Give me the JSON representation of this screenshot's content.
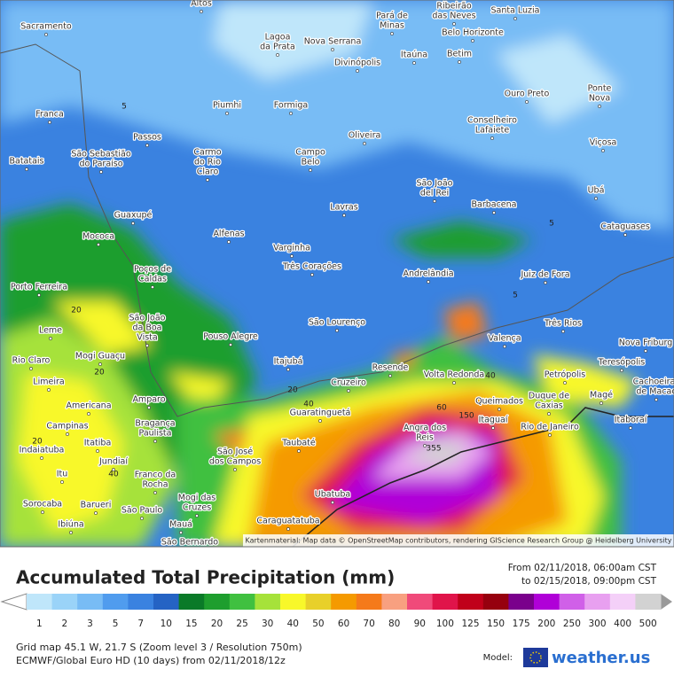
{
  "map": {
    "attribution": "Kartenmaterial: Map data © OpenStreetMap contributors, rendering GIScience Research Group @ Heidelberg University",
    "cities": [
      {
        "lines": [
          "Altos"
        ]
      },
      {
        "lines": [
          "Sacramento"
        ]
      },
      {
        "lines": [
          "Pará de",
          "Minas"
        ]
      },
      {
        "lines": [
          "Ribeirão",
          "das Neves"
        ]
      },
      {
        "lines": [
          "Santa Luzia"
        ]
      },
      {
        "lines": [
          "Lagoa",
          "da Prata"
        ]
      },
      {
        "lines": [
          "Nova Serrana"
        ]
      },
      {
        "lines": [
          "Belo Horizonte"
        ]
      },
      {
        "lines": [
          "Itaúna"
        ]
      },
      {
        "lines": [
          "Betim"
        ]
      },
      {
        "lines": [
          "Divinópolis"
        ]
      },
      {
        "lines": [
          "Ouro Preto"
        ]
      },
      {
        "lines": [
          "Ponte",
          "Nova"
        ]
      },
      {
        "lines": [
          "Franca"
        ]
      },
      {
        "lines": [
          "Piumhi"
        ]
      },
      {
        "lines": [
          "Formiga"
        ]
      },
      {
        "lines": [
          "Conselheiro",
          "Lafaiete"
        ]
      },
      {
        "lines": [
          "Passos"
        ]
      },
      {
        "lines": [
          "Oliveira"
        ]
      },
      {
        "lines": [
          "Viçosa"
        ]
      },
      {
        "lines": [
          "Batatais"
        ]
      },
      {
        "lines": [
          "São Sebastião",
          "do Paraíso"
        ]
      },
      {
        "lines": [
          "Carmo",
          "do Rio",
          "Claro"
        ]
      },
      {
        "lines": [
          "Campo",
          "Belo"
        ]
      },
      {
        "lines": [
          "São João",
          "del Rei"
        ]
      },
      {
        "lines": [
          "Ubá"
        ]
      },
      {
        "lines": [
          "Lavras"
        ]
      },
      {
        "lines": [
          "Barbacena"
        ]
      },
      {
        "lines": [
          "Guaxupé"
        ]
      },
      {
        "lines": [
          "Cataguases"
        ]
      },
      {
        "lines": [
          "Mococa"
        ]
      },
      {
        "lines": [
          "Alfenas"
        ]
      },
      {
        "lines": [
          "Varginha"
        ]
      },
      {
        "lines": [
          "Três Corações"
        ]
      },
      {
        "lines": [
          "Poços de",
          "Caldas"
        ]
      },
      {
        "lines": [
          "Andrelândia"
        ]
      },
      {
        "lines": [
          "Juiz de Fora"
        ]
      },
      {
        "lines": [
          "Porto Ferreira"
        ]
      },
      {
        "lines": [
          "São João",
          "da Boa",
          "Vista"
        ]
      },
      {
        "lines": [
          "São Lourenço"
        ]
      },
      {
        "lines": [
          "Três Rios"
        ]
      },
      {
        "lines": [
          "Leme"
        ]
      },
      {
        "lines": [
          "Pouso Alegre"
        ]
      },
      {
        "lines": [
          "Valença"
        ]
      },
      {
        "lines": [
          "Nova Friburg"
        ]
      },
      {
        "lines": [
          "Mogi Guaçu"
        ]
      },
      {
        "lines": [
          "Rio Claro"
        ]
      },
      {
        "lines": [
          "Itajubá"
        ]
      },
      {
        "lines": [
          "Resende"
        ]
      },
      {
        "lines": [
          "Petrópolis"
        ]
      },
      {
        "lines": [
          "Teresópolis"
        ]
      },
      {
        "lines": [
          "Limeira"
        ]
      },
      {
        "lines": [
          "Cruzeiro"
        ]
      },
      {
        "lines": [
          "Volta Redonda"
        ]
      },
      {
        "lines": [
          "Cachoeiras",
          "de Macac"
        ]
      },
      {
        "lines": [
          "Duque de",
          "Caxias"
        ]
      },
      {
        "lines": [
          "Americana"
        ]
      },
      {
        "lines": [
          "Amparo"
        ]
      },
      {
        "lines": [
          "Guaratinguetá"
        ]
      },
      {
        "lines": [
          "Queimados"
        ]
      },
      {
        "lines": [
          "Magé"
        ]
      },
      {
        "lines": [
          "Itaguaí"
        ]
      },
      {
        "lines": [
          "Itaboraí"
        ]
      },
      {
        "lines": [
          "Campinas"
        ]
      },
      {
        "lines": [
          "Bragança",
          "Paulista"
        ]
      },
      {
        "lines": [
          "Rio de Janeiro"
        ]
      },
      {
        "lines": [
          "Angra dos",
          "Reis"
        ]
      },
      {
        "lines": [
          "Itatiba"
        ]
      },
      {
        "lines": [
          "Taubaté"
        ]
      },
      {
        "lines": [
          "São José",
          "dos Campos"
        ]
      },
      {
        "lines": [
          "Indaiatuba"
        ]
      },
      {
        "lines": [
          "Jundiaí"
        ]
      },
      {
        "lines": [
          "Itu"
        ]
      },
      {
        "lines": [
          "Franco da",
          "Rocha"
        ]
      },
      {
        "lines": [
          "Ubatuba"
        ]
      },
      {
        "lines": [
          "Mogi das",
          "Cruzes"
        ]
      },
      {
        "lines": [
          "Sorocaba"
        ]
      },
      {
        "lines": [
          "Barueri"
        ]
      },
      {
        "lines": [
          "São Paulo"
        ]
      },
      {
        "lines": [
          "Caraguatatuba"
        ]
      },
      {
        "lines": [
          "Ibiúna"
        ]
      },
      {
        "lines": [
          "Mauá"
        ]
      },
      {
        "lines": [
          "São Bernardo"
        ]
      }
    ],
    "contour_labels": [
      "5",
      "5",
      "5",
      "20",
      "20",
      "20",
      "20",
      "40",
      "40",
      "40",
      "60",
      "150",
      "355"
    ]
  },
  "footer": {
    "title": "Accumulated Total Precipitation (mm)",
    "from": "From 02/11/2018, 06:00am CST",
    "to": "to 02/15/2018, 09:00pm CST",
    "grid": "Grid map 45.1 W, 21.7 S (Zoom level 3 / Resolution 750m)",
    "model_run": "ECMWF/Global Euro HD (10 days) from 02/11/2018/12z",
    "model_label": "Model:",
    "brand": "weather.us"
  },
  "legend": {
    "values": [
      1,
      2,
      3,
      5,
      7,
      10,
      15,
      20,
      25,
      30,
      40,
      50,
      60,
      70,
      80,
      90,
      100,
      125,
      150,
      175,
      200,
      250,
      300,
      400,
      500
    ],
    "colors": [
      "#bfe6fa",
      "#9ad3f8",
      "#78bcf5",
      "#509cee",
      "#3a82e0",
      "#2563c4",
      "#0a7a28",
      "#1e9e2e",
      "#40c040",
      "#a6e23a",
      "#f8f82a",
      "#e8d02a",
      "#f59a00",
      "#f57a1a",
      "#f8a080",
      "#f04a7a",
      "#e0144a",
      "#c0001a",
      "#96000e",
      "#7a008c",
      "#b000d8",
      "#d060e8",
      "#e8a0f0",
      "#f4d0f8",
      "#d2d2d2"
    ]
  }
}
